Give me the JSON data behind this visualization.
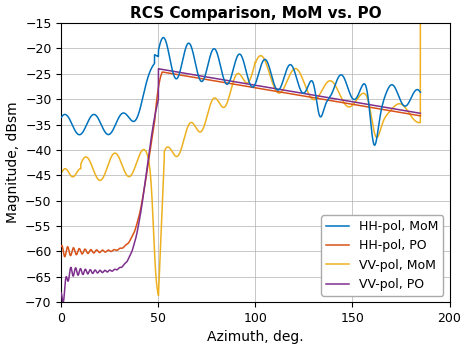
{
  "title": "RCS Comparison, MoM vs. PO",
  "xlabel": "Azimuth, deg.",
  "ylabel": "Magnitude, dBsm",
  "xlim": [
    0,
    200
  ],
  "ylim": [
    -70,
    -15
  ],
  "xticks": [
    0,
    50,
    100,
    150,
    200
  ],
  "yticks": [
    -70,
    -65,
    -60,
    -55,
    -50,
    -45,
    -40,
    -35,
    -30,
    -25,
    -20,
    -15
  ],
  "colors": {
    "HH_MoM": "#0072BD",
    "HH_PO": "#D95319",
    "VV_MoM": "#EDB120",
    "VV_PO": "#7E2F8E"
  },
  "legend_labels": [
    "HH-pol, MoM",
    "HH-pol, PO",
    "VV-pol, MoM",
    "VV-pol, PO"
  ],
  "background_color": "#ffffff",
  "grid_color": "#b0b0b0",
  "title_fontsize": 11,
  "label_fontsize": 10,
  "tick_fontsize": 9,
  "legend_fontsize": 9
}
